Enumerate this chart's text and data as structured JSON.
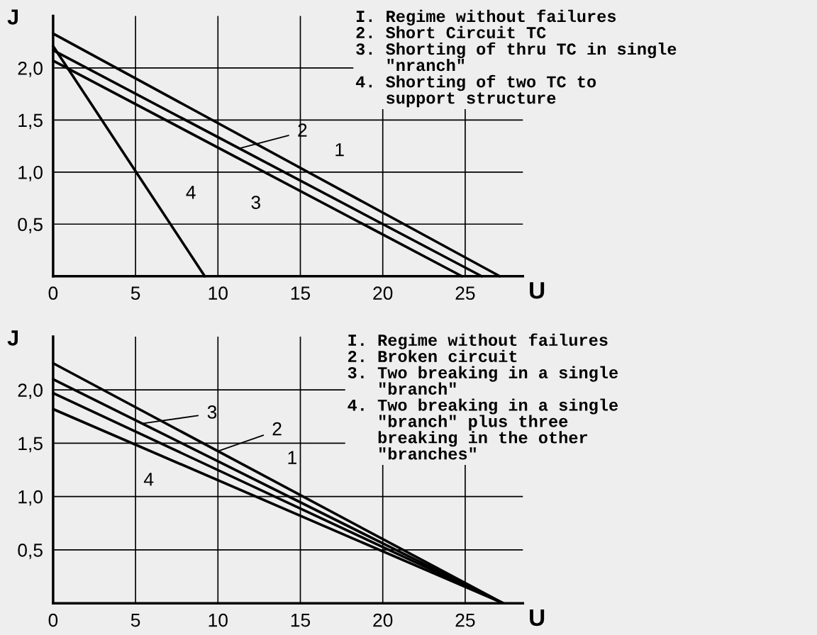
{
  "chart_data": [
    {
      "type": "line",
      "xlabel": "U",
      "ylabel": "J",
      "xlim": [
        0,
        28.5
      ],
      "ylim": [
        0,
        2.5
      ],
      "xticks": [
        0,
        5,
        10,
        15,
        20,
        25
      ],
      "yticks": [
        {
          "value": 0.5,
          "label": "0,5"
        },
        {
          "value": 1.0,
          "label": "1,0"
        },
        {
          "value": 1.5,
          "label": "1,5"
        },
        {
          "value": 2.0,
          "label": "2,0"
        }
      ],
      "grid": true,
      "marker": "none",
      "line_style": "solid",
      "series": [
        {
          "color": "#000000",
          "x": [
            0,
            27.1
          ],
          "values": [
            2.33,
            0
          ]
        },
        {
          "color": "#000000",
          "x": [
            0,
            26.0
          ],
          "values": [
            2.17,
            0
          ]
        },
        {
          "color": "#000000",
          "x": [
            0,
            24.8
          ],
          "values": [
            2.07,
            0
          ]
        },
        {
          "color": "#000000",
          "x": [
            0,
            9.2
          ],
          "values": [
            2.21,
            0
          ]
        }
      ],
      "annotations": [
        "I. Regime without failures\n2. Short Circuit TC\n3. Shorting of thru TC in single\n   \"nranch\"\n4. Shorting of two TC to\n   support structure",
        {
          "text": "1",
          "x": 16.0,
          "y": 0.954
        },
        {
          "text": "2",
          "x": 11.3,
          "y": 1.227
        },
        {
          "text": "3",
          "x": 12.3,
          "y": 1.043
        },
        {
          "text": "4",
          "x": 5.91,
          "y": 0.79
        }
      ]
    },
    {
      "type": "line",
      "xlabel": "U",
      "ylabel": "J",
      "xlim": [
        0,
        28.5
      ],
      "ylim": [
        0,
        2.5
      ],
      "xticks": [
        0,
        5,
        10,
        15,
        20,
        25
      ],
      "yticks": [
        {
          "value": 0.5,
          "label": "0,5"
        },
        {
          "value": 1.0,
          "label": "1,0"
        },
        {
          "value": 1.5,
          "label": "1,5"
        },
        {
          "value": 2.0,
          "label": "2,0"
        }
      ],
      "grid": true,
      "marker": "none",
      "line_style": "solid",
      "series": [
        {
          "color": "#000000",
          "x": [
            0,
            27.3
          ],
          "values": [
            2.25,
            0
          ]
        },
        {
          "color": "#000000",
          "x": [
            0,
            27.3
          ],
          "values": [
            2.1,
            0
          ]
        },
        {
          "color": "#000000",
          "x": [
            0,
            27.3
          ],
          "values": [
            1.97,
            0
          ]
        },
        {
          "color": "#000000",
          "x": [
            0,
            27.3
          ],
          "values": [
            1.82,
            0
          ]
        }
      ],
      "annotations": [
        "I. Regime without failures\n2. Broken circuit\n3. Two breaking in a single\n   \"branch\"\n4. Two breaking in a single\n   \"branch\" plus three\n   breaking in the other\n   \"branches\"",
        {
          "text": "1",
          "x": 14.5,
          "y": 1.055
        },
        {
          "text": "2",
          "x": 10.0,
          "y": 1.426
        },
        {
          "text": "3",
          "x": 5.4,
          "y": 1.685
        },
        {
          "text": "4",
          "x": 5.8,
          "y": 1.433
        }
      ]
    }
  ]
}
